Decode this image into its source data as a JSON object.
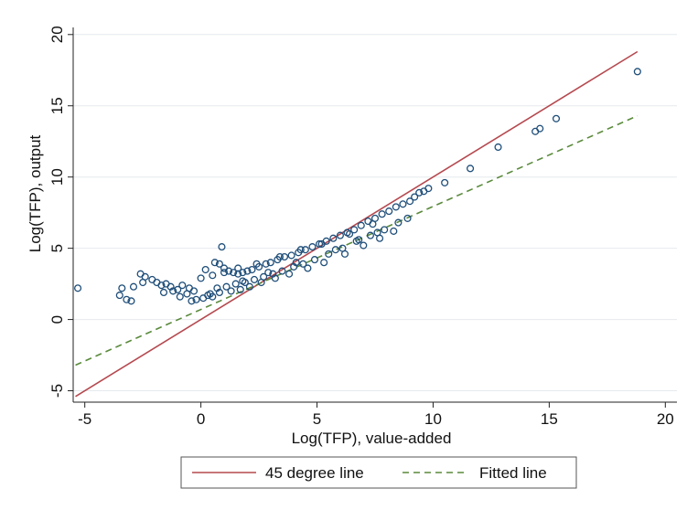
{
  "chart_data": {
    "type": "scatter",
    "xlabel": "Log(TFP), value-added",
    "ylabel": "Log(TFP), output",
    "xlim": [
      -5.5,
      20.5
    ],
    "ylim": [
      -5.8,
      20.5
    ],
    "xticks": [
      -5,
      0,
      5,
      10,
      15,
      20
    ],
    "yticks": [
      -5,
      0,
      5,
      10,
      15,
      20
    ],
    "x_tick_labels": [
      "-5",
      "0",
      "5",
      "10",
      "15",
      "20"
    ],
    "y_tick_labels": [
      "-5",
      "0",
      "5",
      "10",
      "15",
      "20"
    ],
    "grid": "horizontal",
    "legend_position": "bottom",
    "colors": {
      "points": "#1f4e79",
      "line_45": "#b5494f",
      "fitted": "#5a8a3c",
      "grid": "#e6eaee"
    },
    "series": [
      {
        "name": "45 degree line",
        "kind": "line",
        "style": "solid",
        "x": [
          -5.4,
          18.8
        ],
        "y": [
          -5.4,
          18.8
        ]
      },
      {
        "name": "Fitted line",
        "kind": "line",
        "style": "dashed",
        "x": [
          -5.4,
          18.8
        ],
        "y": [
          -3.2,
          14.3
        ]
      }
    ],
    "scatter_points": {
      "x": [
        -5.3,
        -3.5,
        -3.4,
        -3.0,
        -2.9,
        -3.2,
        -2.6,
        -2.4,
        -2.1,
        -1.9,
        -1.7,
        -1.5,
        -1.3,
        -1.0,
        -0.8,
        -0.5,
        -0.3,
        -2.5,
        -1.6,
        -0.9,
        -0.6,
        -0.2,
        0.1,
        -1.2,
        -0.4,
        0.3,
        0.5,
        0.2,
        0.8,
        1.0,
        1.2,
        0.6,
        0.9,
        1.4,
        1.6,
        1.8,
        2.0,
        2.2,
        2.5,
        2.8,
        3.0,
        3.3,
        3.6,
        3.9,
        4.2,
        4.5,
        4.8,
        5.1,
        5.4,
        5.7,
        6.0,
        6.3,
        6.6,
        6.9,
        7.2,
        7.5,
        7.8,
        8.1,
        8.4,
        8.7,
        9.0,
        9.2,
        9.4,
        9.6,
        9.8,
        10.5,
        11.6,
        12.8,
        14.4,
        14.6,
        15.3,
        18.8,
        0.7,
        1.1,
        1.5,
        1.9,
        2.3,
        2.7,
        3.1,
        3.5,
        4.0,
        4.4,
        4.9,
        5.5,
        6.1,
        6.7,
        7.3,
        7.9,
        8.5,
        8.9,
        0.4,
        0.8,
        1.3,
        1.7,
        2.1,
        2.6,
        3.2,
        3.8,
        4.6,
        5.3,
        6.2,
        7.0,
        7.7,
        8.3,
        0.0,
        0.5,
        1.0,
        1.6,
        2.4,
        3.4,
        4.3,
        5.2,
        6.4,
        7.4,
        1.8,
        2.9,
        4.1,
        5.8,
        6.8,
        7.6
      ],
      "y": [
        2.2,
        1.7,
        2.2,
        1.3,
        2.3,
        1.4,
        3.2,
        3.0,
        2.8,
        2.6,
        2.4,
        2.5,
        2.3,
        2.1,
        2.4,
        2.2,
        2.0,
        2.6,
        1.9,
        1.6,
        1.8,
        1.4,
        1.5,
        2.0,
        1.3,
        1.7,
        1.6,
        3.5,
        3.9,
        3.6,
        3.4,
        4.0,
        5.1,
        3.3,
        3.2,
        3.3,
        3.4,
        3.5,
        3.7,
        3.9,
        4.0,
        4.2,
        4.4,
        4.5,
        4.7,
        4.9,
        5.1,
        5.3,
        5.5,
        5.7,
        5.9,
        6.1,
        6.3,
        6.6,
        6.9,
        7.1,
        7.4,
        7.6,
        7.9,
        8.1,
        8.3,
        8.6,
        8.9,
        9.0,
        9.2,
        9.6,
        10.6,
        12.1,
        13.2,
        13.4,
        14.1,
        17.4,
        2.2,
        2.3,
        2.5,
        2.6,
        2.8,
        3.0,
        3.2,
        3.4,
        3.7,
        3.9,
        4.2,
        4.6,
        5.0,
        5.5,
        5.9,
        6.3,
        6.8,
        7.1,
        1.8,
        1.9,
        2.0,
        2.1,
        2.3,
        2.6,
        2.9,
        3.2,
        3.6,
        4.0,
        4.6,
        5.2,
        5.7,
        6.2,
        2.9,
        3.1,
        3.3,
        3.6,
        3.9,
        4.4,
        4.9,
        5.3,
        6.0,
        6.7,
        2.7,
        3.3,
        4.0,
        4.9,
        5.6,
        6.1
      ]
    },
    "legend": [
      {
        "label": "45 degree line",
        "style": "solid",
        "color": "#b5494f"
      },
      {
        "label": "Fitted line",
        "style": "dashed",
        "color": "#5a8a3c"
      }
    ]
  }
}
